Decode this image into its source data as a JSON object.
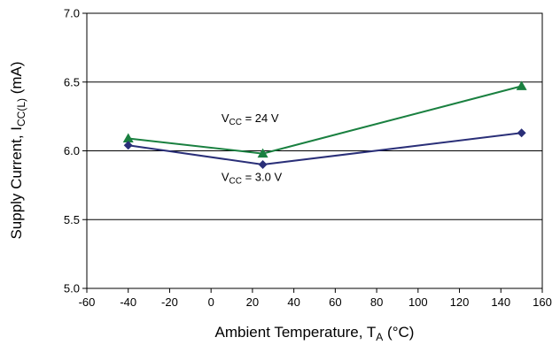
{
  "chart_data": {
    "type": "line",
    "xlabel": {
      "main": "Ambient Temperature, T",
      "sub": "A",
      "tail": " (°C)"
    },
    "ylabel": {
      "main": "Supply Current, I",
      "sub": "CC(L)",
      "tail": " (mA)"
    },
    "xlim": [
      -60,
      160
    ],
    "ylim": [
      5.0,
      7.0
    ],
    "xticks": [
      "-60",
      "-40",
      "-20",
      "0",
      "20",
      "40",
      "60",
      "80",
      "100",
      "120",
      "140",
      "160"
    ],
    "yticks": [
      "5.0",
      "5.5",
      "6.0",
      "6.5",
      "7.0"
    ],
    "grid": "horizontal",
    "series": [
      {
        "name": "V_CC = 24 V",
        "label_main": "V",
        "label_sub": "CC",
        "label_tail": " = 24 V",
        "color": "#1a8040",
        "marker": "triangle",
        "x": [
          -40,
          25,
          150
        ],
        "y": [
          6.09,
          5.98,
          6.47
        ]
      },
      {
        "name": "V_CC = 3.0 V",
        "label_main": "V",
        "label_sub": "CC",
        "label_tail": " = 3.0 V",
        "color": "#2a2f78",
        "marker": "diamond",
        "x": [
          -40,
          25,
          150
        ],
        "y": [
          6.04,
          5.9,
          6.13
        ]
      }
    ]
  }
}
